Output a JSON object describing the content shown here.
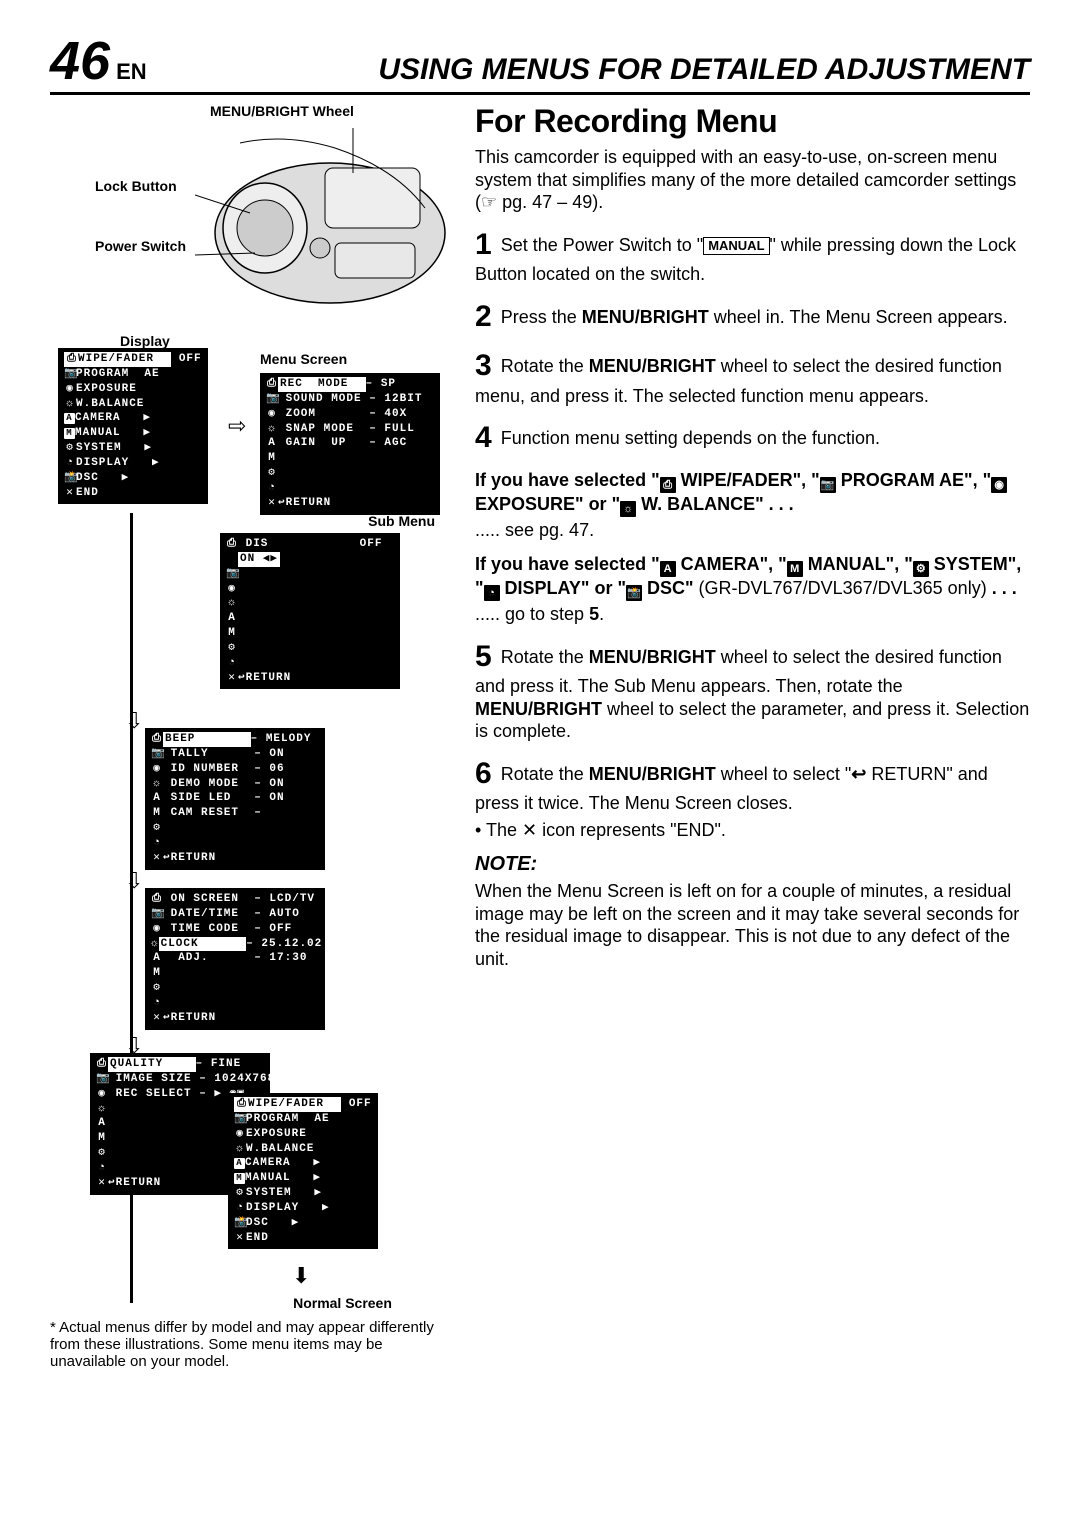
{
  "header": {
    "page_num": "46",
    "lang": "EN",
    "title": "USING MENUS FOR DETAILED ADJUSTMENT"
  },
  "labels": {
    "menu_bright_wheel": "MENU/BRIGHT Wheel",
    "lock_button": "Lock Button",
    "power_switch": "Power Switch",
    "display": "Display",
    "menu_screen": "Menu Screen",
    "sub_menu": "Sub Menu",
    "normal_screen": "Normal Screen"
  },
  "main_menu": {
    "items": [
      {
        "icon": "⎙",
        "label": "WIPE/FADER",
        "val": "OFF",
        "hl": true
      },
      {
        "icon": "📷",
        "label": "PROGRAM  AE",
        "val": ""
      },
      {
        "icon": "◉",
        "label": "EXPOSURE",
        "val": ""
      },
      {
        "icon": "☼",
        "label": "W.BALANCE",
        "val": ""
      },
      {
        "icon": "A",
        "box": true,
        "label": "CAMERA",
        "arrow": true
      },
      {
        "icon": "M",
        "box": true,
        "label": "MANUAL",
        "arrow": true
      },
      {
        "icon": "⚙",
        "label": "SYSTEM",
        "arrow": true
      },
      {
        "icon": "◔",
        "label": "DISPLAY",
        "arrow": true
      },
      {
        "icon": "📸",
        "label": "DSC",
        "arrow": true
      },
      {
        "icon": "✕",
        "label": "END",
        "arrow": false
      }
    ]
  },
  "menu_screen_box": {
    "items": [
      {
        "label": "REC  MODE",
        "val": "SP",
        "hl": true
      },
      {
        "label": "SOUND MODE",
        "val": "12BIT"
      },
      {
        "label": "ZOOM",
        "val": "40X"
      },
      {
        "label": "SNAP MODE",
        "val": "FULL"
      },
      {
        "label": "GAIN  UP",
        "val": "AGC"
      }
    ],
    "return": "↩RETURN"
  },
  "submenu1": {
    "items": [
      {
        "label": "DIS",
        "val_off": "OFF",
        "val_on": "ON ◀▶",
        "hl": true
      }
    ],
    "return": "↩RETURN"
  },
  "submenu2": {
    "items": [
      {
        "label": "BEEP",
        "val": "MELODY",
        "hl": true
      },
      {
        "label": "TALLY",
        "val": "ON"
      },
      {
        "label": "ID NUMBER",
        "val": "06"
      },
      {
        "label": "DEMO MODE",
        "val": "ON"
      },
      {
        "label": "SIDE LED",
        "val": "ON"
      },
      {
        "label": "CAM RESET",
        "val": ""
      }
    ],
    "return": "↩RETURN"
  },
  "submenu3": {
    "items": [
      {
        "label": "ON SCREEN",
        "val": "LCD/TV"
      },
      {
        "label": "DATE/TIME",
        "val": "AUTO"
      },
      {
        "label": "TIME CODE",
        "val": "OFF"
      },
      {
        "label": "CLOCK",
        "val": "25.12.02",
        "hl": true
      },
      {
        "label": " ADJ.",
        "val": "17:30"
      }
    ],
    "return": "↩RETURN"
  },
  "submenu4": {
    "items": [
      {
        "label": "QUALITY",
        "val": "FINE",
        "hl": true
      },
      {
        "label": "IMAGE SIZE",
        "val": "1024X768"
      },
      {
        "label": "REC SELECT",
        "val": "▶ ◉▣"
      }
    ],
    "return": "↩RETURN"
  },
  "right": {
    "section_title": "For Recording Menu",
    "intro": "This camcorder is equipped with an easy-to-use, on-screen menu system that simplifies many of the more detailed camcorder settings (☞ pg. 47 – 49).",
    "step1a": "Set the Power Switch to \"",
    "step1_manual": "MANUAL",
    "step1b": "\" while pressing down the Lock Button located on the switch.",
    "step2": "Press the MENU/BRIGHT wheel in. The Menu Screen appears.",
    "step2_bold": "MENU/BRIGHT",
    "step3": "Rotate the MENU/BRIGHT wheel to select the desired function menu, and press it. The selected function menu appears.",
    "step3_bold": "MENU/BRIGHT",
    "step4": "Function menu setting depends on the function.",
    "sel1_a": "If you have selected \"",
    "sel1_b": " WIPE/FADER\", \"",
    "sel1_c": " PROGRAM AE\", \"",
    "sel1_d": " EXPOSURE\" or \"",
    "sel1_e": " W. BALANCE\" . . .",
    "sel1_see": "..... see pg. 47.",
    "sel2_a": "If you have selected \"",
    "sel2_b": " CAMERA\", \"",
    "sel2_c": " MANUAL\", \"",
    "sel2_d": " SYSTEM\", \"",
    "sel2_e": " DISPLAY\" or \"",
    "sel2_f": " DSC\"",
    "sel2_model": " (GR-DVL767/DVL367/DVL365 only)",
    "sel2_dots": " . . .",
    "sel2_goto": "..... go to step 5.",
    "step5a": "Rotate the ",
    "step5b": " wheel to select the desired function and press it. The Sub Menu appears. Then, rotate the ",
    "step5c": " wheel to select the parameter, and press it. Selection is complete.",
    "step6a": "Rotate the ",
    "step6b": " wheel to select \"",
    "step6c": " RETURN\" and press it twice. The Menu Screen closes.",
    "step6d_bullet": "• The ✕ icon represents \"END\".",
    "note_head": "NOTE:",
    "note_body": "When the Menu Screen is left on for a couple of minutes, a residual image may be left on the screen and it may take several seconds for the residual image to disappear. This is not due to any defect of the unit."
  },
  "footnote": "* Actual menus differ by model and may appear differently from these illustrations. Some menu items may be unavailable on your model.",
  "style": {
    "bg": "#ffffff",
    "fg": "#000000",
    "menu_bg": "#000000",
    "menu_fg": "#ffffff",
    "body_font_size": 18,
    "small_font_size": 14,
    "mono_font_size": 11
  }
}
